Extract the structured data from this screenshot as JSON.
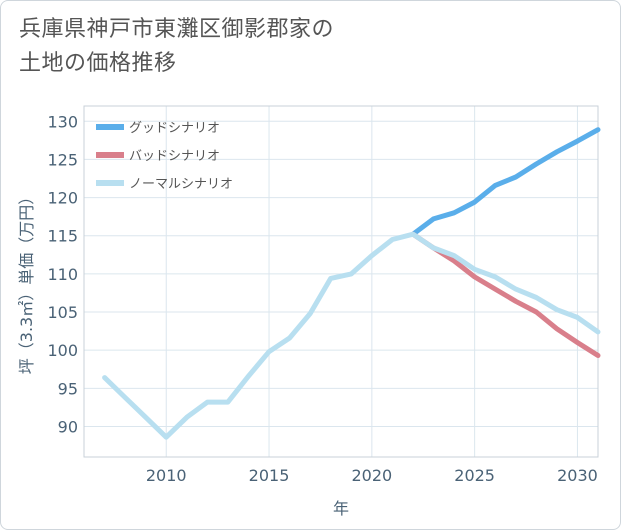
{
  "title": "兵庫県神戸市東灘区御影郡家の\n土地の価格推移",
  "chart_data": {
    "type": "line",
    "xlabel": "年",
    "ylabel": "坪（3.3㎡）単価（万円）",
    "xlim": [
      2006,
      2031
    ],
    "ylim": [
      86,
      132
    ],
    "xticks": [
      2010,
      2015,
      2020,
      2025,
      2030
    ],
    "yticks": [
      90,
      95,
      100,
      105,
      110,
      115,
      120,
      125,
      130
    ],
    "grid": true,
    "legend_position": "top-left",
    "series": [
      {
        "name": "グッドシナリオ",
        "color": "#5aaeea",
        "x": [
          2022,
          2023,
          2024,
          2025,
          2026,
          2027,
          2028,
          2029,
          2030,
          2031
        ],
        "y": [
          115.2,
          117.2,
          118.0,
          119.4,
          121.6,
          122.7,
          124.4,
          126.0,
          127.4,
          128.9
        ]
      },
      {
        "name": "バッドシナリオ",
        "color": "#d97f8b",
        "x": [
          2022,
          2023,
          2024,
          2025,
          2026,
          2027,
          2028,
          2029,
          2030,
          2031
        ],
        "y": [
          115.2,
          113.4,
          111.7,
          109.6,
          108.0,
          106.4,
          105.0,
          102.8,
          101.0,
          99.3
        ]
      },
      {
        "name": "ノーマルシナリオ",
        "color": "#b8dff0",
        "x": [
          2007,
          2008,
          2009,
          2010,
          2011,
          2012,
          2013,
          2014,
          2015,
          2016,
          2017,
          2018,
          2019,
          2020,
          2021,
          2022,
          2023,
          2024,
          2025,
          2026,
          2027,
          2028,
          2029,
          2030,
          2031
        ],
        "y": [
          96.4,
          93.8,
          91.2,
          88.6,
          91.2,
          93.2,
          93.2,
          96.6,
          99.8,
          101.6,
          104.8,
          109.4,
          110.0,
          112.4,
          114.5,
          115.2,
          113.4,
          112.4,
          110.6,
          109.6,
          108.0,
          106.9,
          105.3,
          104.3,
          102.4
        ]
      }
    ]
  }
}
